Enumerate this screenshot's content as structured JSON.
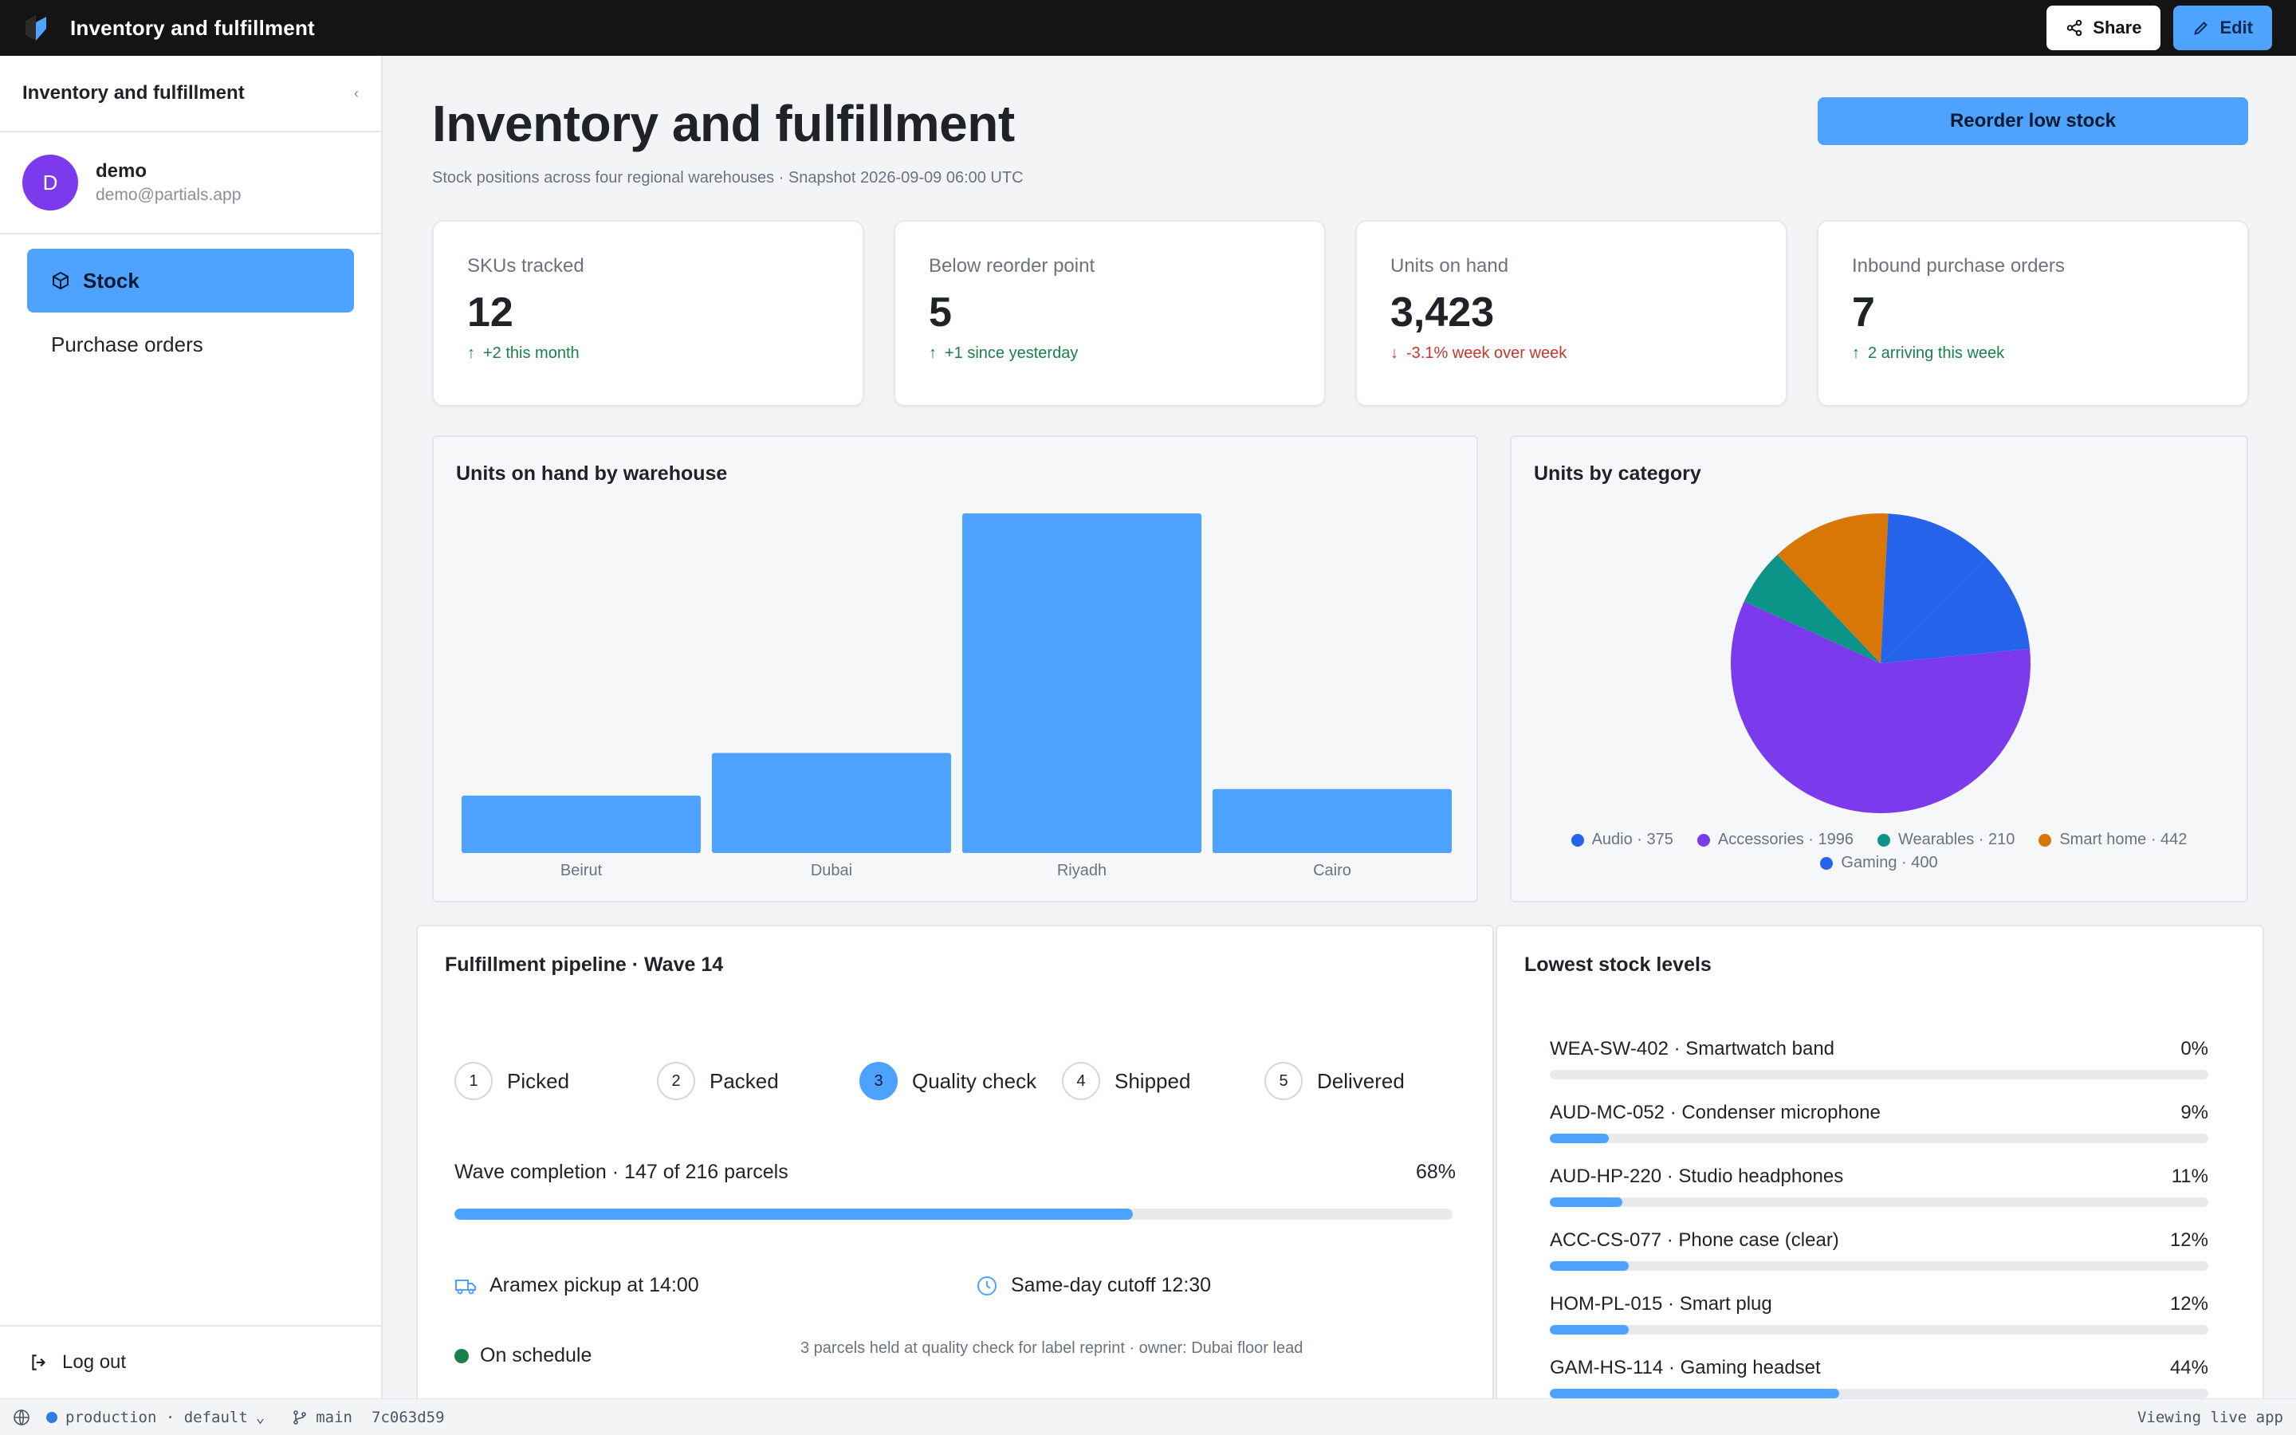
{
  "topbar": {
    "app_title": "Inventory and fulfillment",
    "share_label": "Share",
    "edit_label": "Edit",
    "logo_icon": "app-logo-icon"
  },
  "sidebar": {
    "title": "Inventory and fulfillment",
    "collapse_icon": "chevron-left-icon",
    "user": {
      "initial": "D",
      "name": "demo",
      "email": "demo@partials.app",
      "avatar_color": "#7c3aed"
    },
    "nav": [
      {
        "label": "Stock",
        "icon": "box-icon",
        "active": true
      },
      {
        "label": "Purchase orders",
        "active": false
      }
    ],
    "logout_label": "Log out"
  },
  "page": {
    "title": "Inventory and fulfillment",
    "subtitle": "Stock positions across four regional warehouses · Snapshot 2026-09-09 06:00 UTC",
    "reorder_button": "Reorder low stock"
  },
  "kpis": [
    {
      "label": "SKUs tracked",
      "value": "12",
      "delta": "+2 this month",
      "direction": "up"
    },
    {
      "label": "Below reorder point",
      "value": "5",
      "delta": "+1 since yesterday",
      "direction": "up"
    },
    {
      "label": "Units on hand",
      "value": "3,423",
      "delta": "-3.1% week over week",
      "direction": "down"
    },
    {
      "label": "Inbound purchase orders",
      "value": "7",
      "delta": "2 arriving this week",
      "direction": "up"
    }
  ],
  "chart_data": [
    {
      "type": "bar",
      "title": "Units on hand by warehouse",
      "categories": [
        "Beirut",
        "Dubai",
        "Riyadh",
        "Cairo"
      ],
      "values": [
        350,
        610,
        2070,
        390
      ],
      "ylim": [
        0,
        2070
      ],
      "grid": false,
      "color": "#4da3ff"
    },
    {
      "type": "pie",
      "title": "Units by category",
      "slices": [
        {
          "label": "Audio",
          "value": 375,
          "color": "#2563eb"
        },
        {
          "label": "Accessories",
          "value": 1996,
          "color": "#7c3aed"
        },
        {
          "label": "Wearables",
          "value": 210,
          "color": "#0d9488"
        },
        {
          "label": "Smart home",
          "value": 442,
          "color": "#d97706"
        },
        {
          "label": "Gaming",
          "value": 400,
          "color": "#2563eb"
        }
      ],
      "legend_labels": [
        "Audio · 375",
        "Accessories · 1996",
        "Wearables · 210",
        "Smart home · 442",
        "Gaming · 400"
      ],
      "legend_position": "bottom"
    }
  ],
  "pipeline": {
    "title": "Fulfillment pipeline · Wave 14",
    "steps": [
      {
        "num": "1",
        "label": "Picked",
        "active": false
      },
      {
        "num": "2",
        "label": "Packed",
        "active": false
      },
      {
        "num": "3",
        "label": "Quality check",
        "active": true
      },
      {
        "num": "4",
        "label": "Shipped",
        "active": false
      },
      {
        "num": "5",
        "label": "Delivered",
        "active": false
      }
    ],
    "wave_label": "Wave completion · 147 of 216 parcels",
    "wave_pct_label": "68%",
    "wave_fraction": 0.68,
    "pickup": "Aramex pickup at 14:00",
    "cutoff": "Same-day cutoff 12:30",
    "status": "On schedule",
    "note": "3 parcels held at quality check for label reprint · owner: Dubai floor lead"
  },
  "lowest_stock": {
    "title": "Lowest stock levels",
    "items": [
      {
        "name": "WEA-SW-402 · Smartwatch band",
        "pct_label": "0%",
        "fraction": 0.0
      },
      {
        "name": "AUD-MC-052 · Condenser microphone",
        "pct_label": "9%",
        "fraction": 0.09
      },
      {
        "name": "AUD-HP-220 · Studio headphones",
        "pct_label": "11%",
        "fraction": 0.11
      },
      {
        "name": "ACC-CS-077 · Phone case (clear)",
        "pct_label": "12%",
        "fraction": 0.12
      },
      {
        "name": "HOM-PL-015 · Smart plug",
        "pct_label": "12%",
        "fraction": 0.12
      },
      {
        "name": "GAM-HS-114 · Gaming headset",
        "pct_label": "44%",
        "fraction": 0.44
      }
    ]
  },
  "statusbar": {
    "env": "production · default",
    "branch": "main",
    "commit": "7c063d59",
    "right": "Viewing live app"
  },
  "colors": {
    "accent": "#4da3ff",
    "topbar": "#141414",
    "success": "#1a7f4b",
    "danger": "#c0392b"
  }
}
